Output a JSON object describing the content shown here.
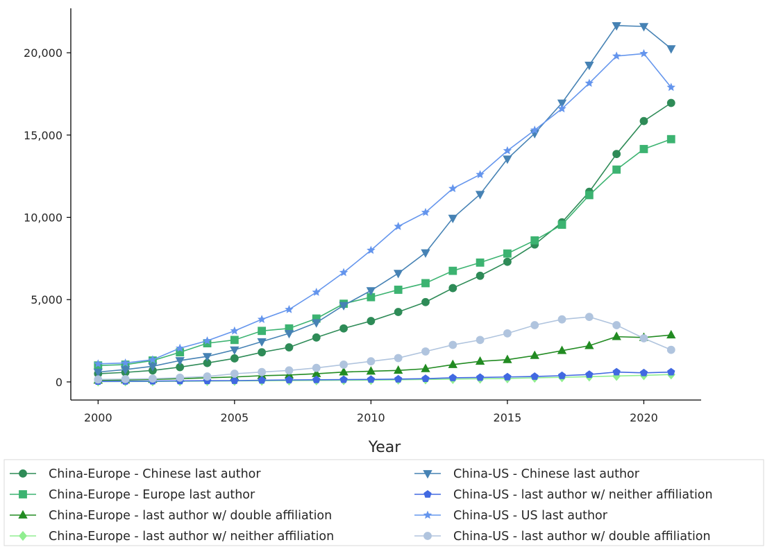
{
  "chart_data": {
    "type": "line",
    "title": "",
    "xlabel": "Year",
    "ylabel": "",
    "xlim": [
      1999,
      2022.1
    ],
    "ylim": [
      -1100,
      22700
    ],
    "x_ticks": [
      "2000",
      "2005",
      "2010",
      "2015",
      "2020"
    ],
    "x_tick_values": [
      2000,
      2005,
      2010,
      2015,
      2020
    ],
    "y_ticks": [
      "0",
      "5,000",
      "10,000",
      "15,000",
      "20,000"
    ],
    "y_tick_values": [
      0,
      5000,
      10000,
      15000,
      20000
    ],
    "grid": false,
    "legend_placement": "below",
    "x": [
      2000,
      2001,
      2002,
      2003,
      2004,
      2005,
      2006,
      2007,
      2008,
      2009,
      2010,
      2011,
      2012,
      2013,
      2014,
      2015,
      2016,
      2017,
      2018,
      2019,
      2020,
      2021
    ],
    "series": [
      {
        "name": "China-Europe - Chinese last author",
        "color": "#2e8b57",
        "marker": "circle",
        "values": [
          500,
          580,
          700,
          900,
          1150,
          1430,
          1800,
          2100,
          2700,
          3250,
          3700,
          4250,
          4850,
          5700,
          6450,
          7300,
          8350,
          9700,
          11550,
          13850,
          15850,
          16950
        ]
      },
      {
        "name": "China-Europe - Europe last author",
        "color": "#3cb371",
        "marker": "square",
        "values": [
          1000,
          1050,
          1300,
          1800,
          2350,
          2550,
          3100,
          3250,
          3850,
          4750,
          5150,
          5600,
          6000,
          6750,
          7250,
          7800,
          8600,
          9550,
          11350,
          12900,
          14150,
          14750
        ]
      },
      {
        "name": "China-Europe - last author w/ double affiliation",
        "color": "#228b22",
        "marker": "triangle-up",
        "values": [
          100,
          120,
          150,
          200,
          250,
          300,
          380,
          420,
          500,
          600,
          650,
          700,
          800,
          1050,
          1250,
          1350,
          1600,
          1900,
          2200,
          2750,
          2700,
          2850
        ]
      },
      {
        "name": "China-Europe - last author w/ neither affiliation",
        "color": "#90ee90",
        "marker": "diamond",
        "values": [
          20,
          25,
          30,
          40,
          50,
          60,
          70,
          80,
          90,
          100,
          110,
          130,
          150,
          170,
          190,
          210,
          250,
          280,
          320,
          360,
          400,
          450
        ]
      },
      {
        "name": "China-US - Chinese last author",
        "color": "#4682b4",
        "marker": "triangle-down",
        "values": [
          600,
          750,
          950,
          1300,
          1550,
          1950,
          2450,
          2950,
          3600,
          4650,
          5550,
          6600,
          7850,
          9950,
          11400,
          13550,
          15100,
          16950,
          19250,
          21650,
          21600,
          20250
        ]
      },
      {
        "name": "China-US - last author w/ neither affiliation",
        "color": "#4169e1",
        "marker": "pentagon",
        "values": [
          30,
          40,
          50,
          60,
          70,
          80,
          100,
          120,
          130,
          140,
          150,
          170,
          200,
          250,
          270,
          300,
          330,
          380,
          450,
          600,
          550,
          600
        ]
      },
      {
        "name": "China-US - US last author",
        "color": "#6495ed",
        "marker": "star",
        "values": [
          1100,
          1150,
          1350,
          2050,
          2500,
          3100,
          3800,
          4400,
          5450,
          6650,
          8000,
          9450,
          10300,
          11750,
          12600,
          14050,
          15300,
          16600,
          18150,
          19800,
          19950,
          17900
        ]
      },
      {
        "name": "China-US - last author w/ double affiliation",
        "color": "#b0c4de",
        "marker": "circle",
        "values": [
          150,
          170,
          200,
          260,
          330,
          500,
          600,
          700,
          850,
          1050,
          1250,
          1450,
          1850,
          2250,
          2550,
          2950,
          3450,
          3800,
          3950,
          3450,
          2650,
          1950
        ]
      }
    ]
  }
}
